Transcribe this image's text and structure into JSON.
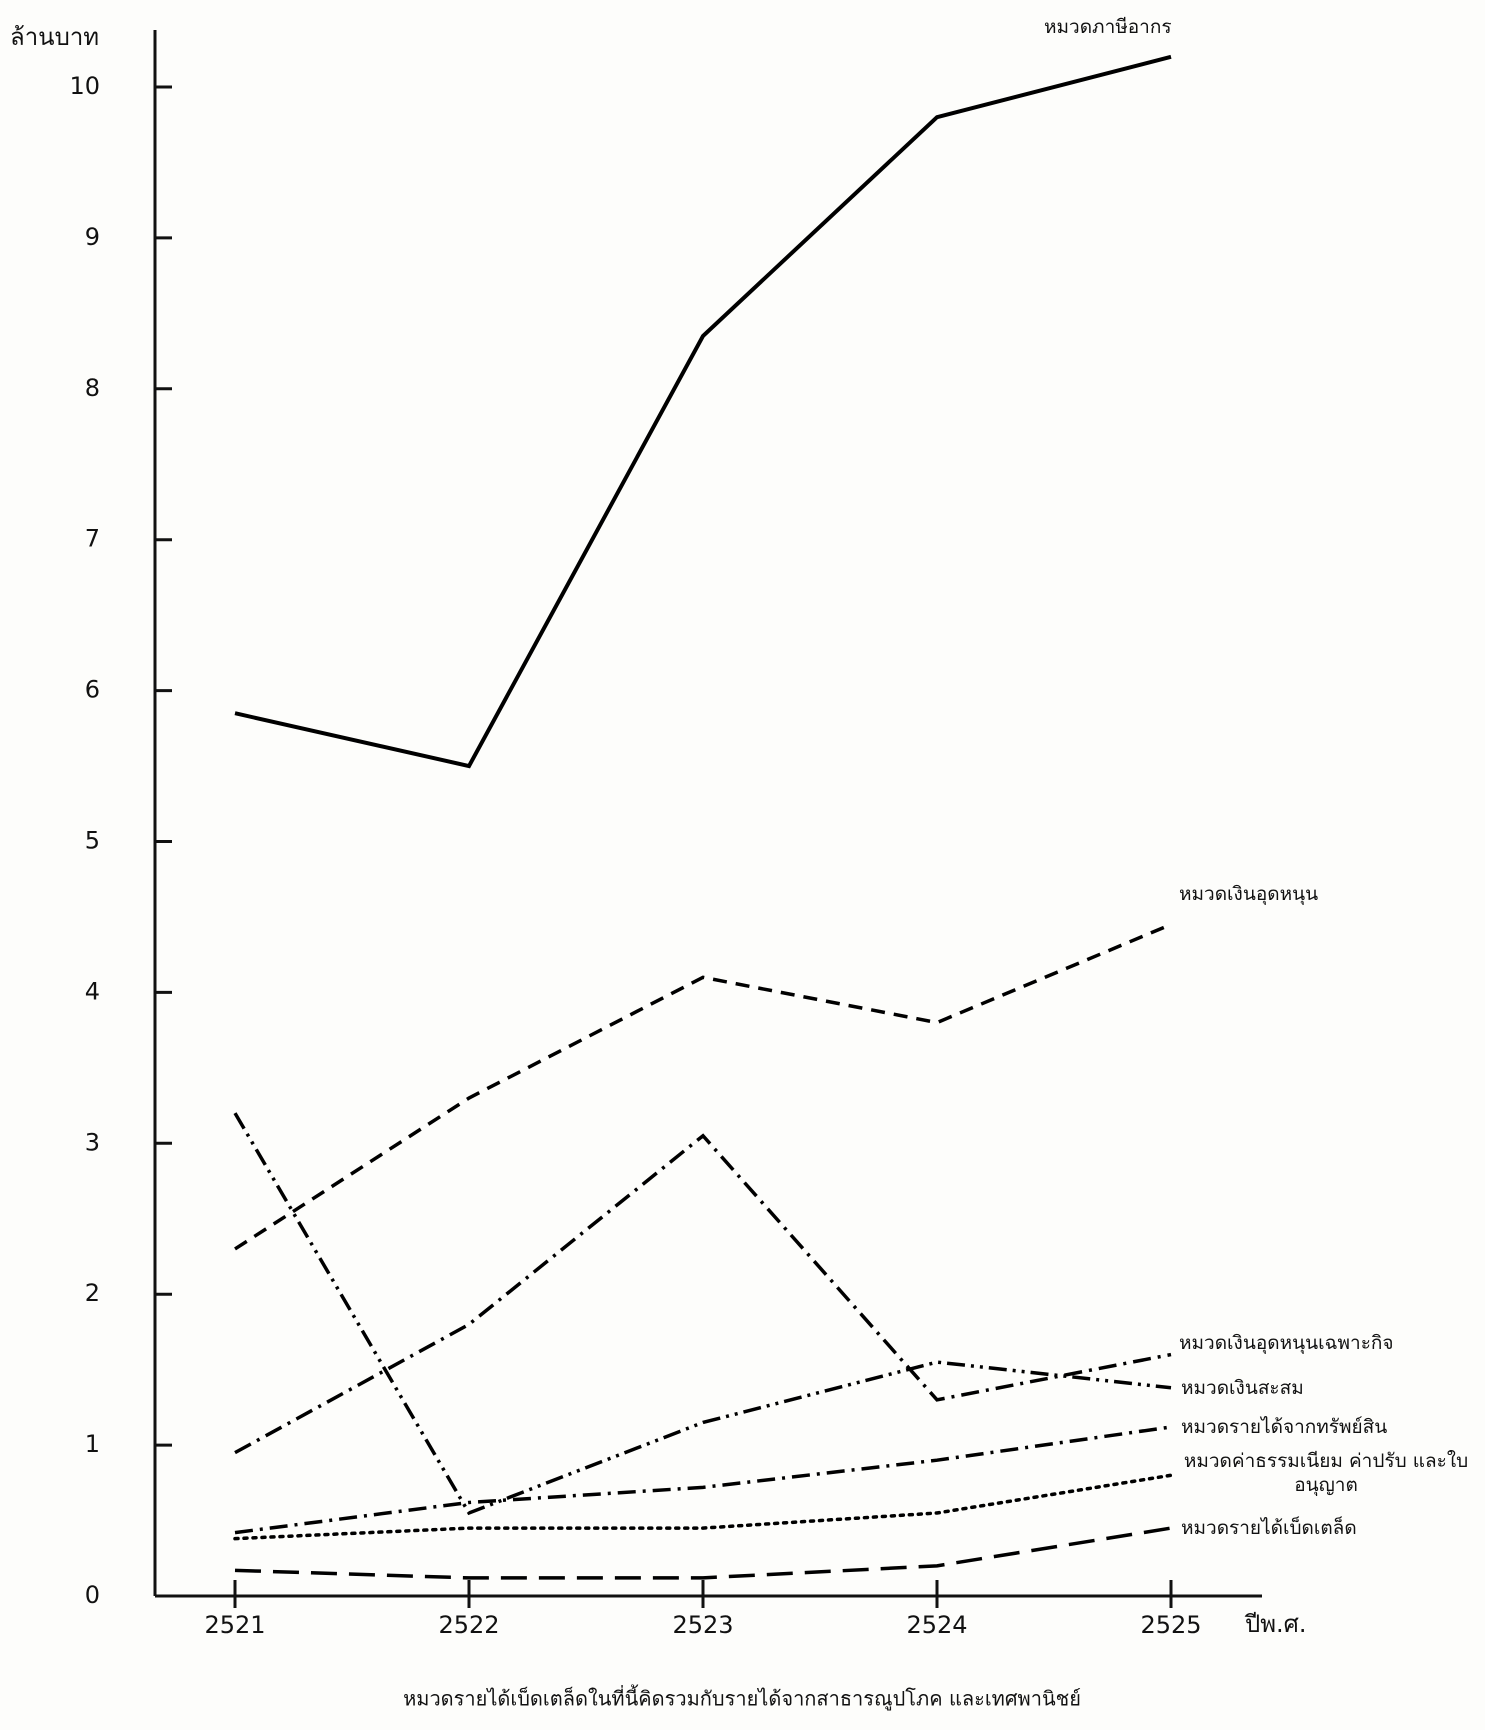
{
  "chart_data": {
    "type": "line",
    "y_label": "ล้านบาท",
    "x_label": "ปีพ.ศ.",
    "note": "หมวดรายได้เบ็ดเตล็ดในที่นี้คิดรวมกับรายได้จากสาธารณูปโภค และเทศพานิชย์",
    "categories": [
      "2521",
      "2522",
      "2523",
      "2524",
      "2525"
    ],
    "ylim": [
      0,
      10
    ],
    "yticks": [
      0,
      1,
      2,
      3,
      4,
      5,
      6,
      7,
      8,
      9,
      10
    ],
    "series": [
      {
        "name": "หมวดภาษีอากร",
        "color": "#000000",
        "dash": "solid",
        "values": [
          5.85,
          5.5,
          8.35,
          9.8,
          10.2
        ]
      },
      {
        "name": "หมวดเงินอุดหนุน",
        "color": "#000000",
        "dash": "dashed",
        "values": [
          2.3,
          3.3,
          4.1,
          3.8,
          4.45
        ]
      },
      {
        "name": "หมวดเงินอุดหนุนเฉพาะกิจ",
        "color": "#000000",
        "dash": "dashdot",
        "values": [
          0.95,
          1.8,
          3.05,
          1.3,
          1.6
        ]
      },
      {
        "name": "หมวดเงินสะสม",
        "color": "#000000",
        "dash": "dashdotdot",
        "values": [
          3.2,
          0.55,
          1.15,
          1.55,
          1.38
        ]
      },
      {
        "name": "หมวดรายได้จากทรัพย์สิน",
        "color": "#000000",
        "dash": "dashdot",
        "values": [
          0.42,
          0.62,
          0.72,
          0.9,
          1.12
        ]
      },
      {
        "name": "หมวดค่าธรรมเนียม ค่าปรับ และใบอนุญาต",
        "color": "#000000",
        "dash": "dotted",
        "values": [
          0.38,
          0.45,
          0.45,
          0.55,
          0.8
        ]
      },
      {
        "name": "หมวดรายได้เบ็ดเตล็ด",
        "color": "#000000",
        "dash": "longdash",
        "values": [
          0.17,
          0.12,
          0.12,
          0.2,
          0.45
        ]
      }
    ]
  }
}
